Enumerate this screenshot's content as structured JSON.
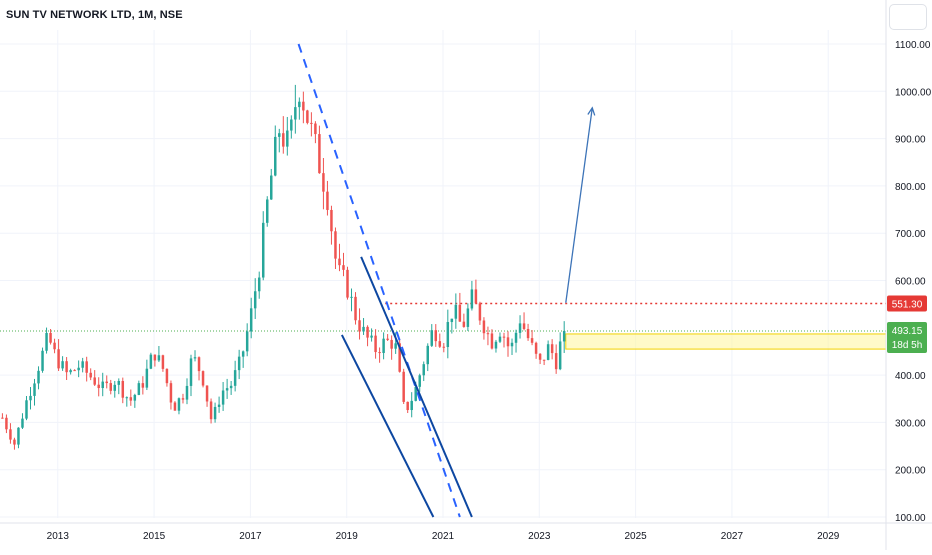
{
  "header": {
    "title": "SUN TV NETWORK LTD, 1M, NSE"
  },
  "colors": {
    "up": "#26a69a",
    "down": "#ef5350",
    "resistance": "#e53935",
    "current": "#4caf50",
    "channel": "#0d47a1",
    "arrow": "#3d74b8",
    "zone_fill": "#fff59d",
    "zone_border": "#f2d200",
    "grid": "#f0f3fa",
    "axis_text": "#131722"
  },
  "chart_data": {
    "type": "candlestick",
    "x_ticks": [
      "2013",
      "2015",
      "2017",
      "2019",
      "2021",
      "2023",
      "2025",
      "2027",
      "2029"
    ],
    "y_ticks": [
      "1100.00",
      "1000.00",
      "900.00",
      "800.00",
      "700.00",
      "600.00",
      "400.00",
      "300.00",
      "200.00",
      "100.00"
    ],
    "x_range": [
      2011.8,
      2030.2
    ],
    "y_range": [
      100,
      1100
    ],
    "price_labels": {
      "resistance": "551.30",
      "current": "493.15",
      "countdown": "18d 5h"
    },
    "levels": {
      "resistance": 551.3,
      "current": 493.15
    },
    "zone": [
      455,
      487
    ],
    "approx_ohlc_path": [
      [
        2011.85,
        310
      ],
      [
        2012.1,
        255
      ],
      [
        2012.35,
        345
      ],
      [
        2012.6,
        420
      ],
      [
        2012.8,
        480
      ],
      [
        2012.95,
        440
      ],
      [
        2013.2,
        400
      ],
      [
        2013.45,
        420
      ],
      [
        2013.7,
        395
      ],
      [
        2013.95,
        370
      ],
      [
        2014.2,
        390
      ],
      [
        2014.5,
        345
      ],
      [
        2014.75,
        380
      ],
      [
        2015.0,
        450
      ],
      [
        2015.2,
        410
      ],
      [
        2015.4,
        330
      ],
      [
        2015.6,
        360
      ],
      [
        2015.8,
        440
      ],
      [
        2016.0,
        400
      ],
      [
        2016.2,
        300
      ],
      [
        2016.4,
        365
      ],
      [
        2016.6,
        380
      ],
      [
        2016.8,
        430
      ],
      [
        2017.0,
        520
      ],
      [
        2017.2,
        640
      ],
      [
        2017.4,
        800
      ],
      [
        2017.6,
        920
      ],
      [
        2017.8,
        880
      ],
      [
        2018.0,
        1020
      ],
      [
        2018.2,
        940
      ],
      [
        2018.4,
        860
      ],
      [
        2018.6,
        780
      ],
      [
        2018.8,
        620
      ],
      [
        2019.0,
        590
      ],
      [
        2019.2,
        520
      ],
      [
        2019.4,
        480
      ],
      [
        2019.6,
        455
      ],
      [
        2019.8,
        470
      ],
      [
        2020.0,
        470
      ],
      [
        2020.2,
        320
      ],
      [
        2020.4,
        360
      ],
      [
        2020.6,
        430
      ],
      [
        2020.8,
        500
      ],
      [
        2021.0,
        470
      ],
      [
        2021.2,
        540
      ],
      [
        2021.4,
        500
      ],
      [
        2021.6,
        560
      ],
      [
        2021.8,
        520
      ],
      [
        2022.0,
        470
      ],
      [
        2022.2,
        500
      ],
      [
        2022.4,
        450
      ],
      [
        2022.6,
        520
      ],
      [
        2022.8,
        470
      ],
      [
        2023.0,
        420
      ],
      [
        2023.2,
        460
      ],
      [
        2023.35,
        430
      ],
      [
        2023.45,
        470
      ],
      [
        2023.55,
        493
      ]
    ],
    "drawings": {
      "dashed_trendline": [
        [
          2018.0,
          1100
        ],
        [
          2021.35,
          100
        ]
      ],
      "channel_upper": [
        [
          2019.3,
          650
        ],
        [
          2021.6,
          100
        ]
      ],
      "channel_lower": [
        [
          2018.9,
          485
        ],
        [
          2020.8,
          100
        ]
      ],
      "projection_arrow": [
        [
          2023.55,
          553
        ],
        [
          2024.1,
          965
        ]
      ]
    }
  }
}
